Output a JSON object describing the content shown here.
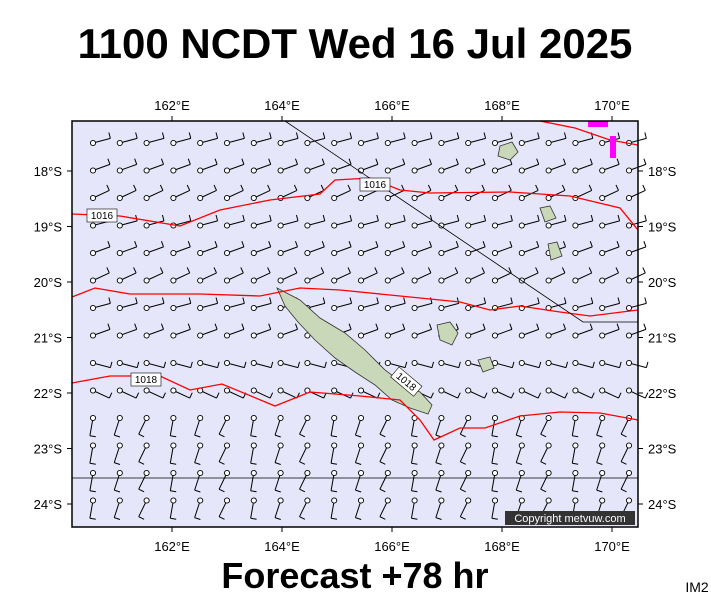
{
  "header": {
    "title": "1100 NCDT Wed 16 Jul 2025"
  },
  "map": {
    "lon_labels": [
      "162°E",
      "164°E",
      "166°E",
      "168°E",
      "170°E"
    ],
    "lat_labels": [
      "18°S",
      "19°S",
      "20°S",
      "21°S",
      "22°S",
      "23°S",
      "24°S"
    ],
    "isobar_labels": [
      "1016",
      "1016",
      "1018",
      "1018"
    ],
    "copyright": "Copyright metvuw.com"
  },
  "footer": {
    "forecast": "Forecast +78 hr",
    "code": "IM2"
  }
}
